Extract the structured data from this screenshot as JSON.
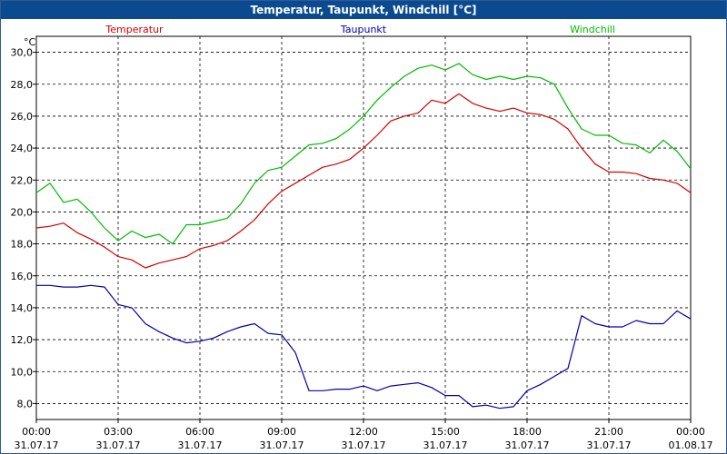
{
  "window": {
    "title": "Temperatur, Taupunkt, Windchill [°C]"
  },
  "chart_data": {
    "type": "line",
    "title": "Temperatur, Taupunkt, Windchill [°C]",
    "ylabel": "°C",
    "ylim": [
      7,
      31
    ],
    "y_ticks": [
      "8,0",
      "10,0",
      "12,0",
      "14,0",
      "16,0",
      "18,0",
      "20,0",
      "22,0",
      "24,0",
      "26,0",
      "28,0",
      "30,0"
    ],
    "x_ticks": [
      {
        "time": "00:00",
        "date": "31.07.17"
      },
      {
        "time": "03:00",
        "date": "31.07.17"
      },
      {
        "time": "06:00",
        "date": "31.07.17"
      },
      {
        "time": "09:00",
        "date": "31.07.17"
      },
      {
        "time": "12:00",
        "date": "31.07.17"
      },
      {
        "time": "15:00",
        "date": "31.07.17"
      },
      {
        "time": "18:00",
        "date": "31.07.17"
      },
      {
        "time": "21:00",
        "date": "31.07.17"
      },
      {
        "time": "00:00",
        "date": "01.08.17"
      }
    ],
    "grid": true,
    "legend_position": "top",
    "series": [
      {
        "name": "Temperatur",
        "color": "#d40000",
        "x": [
          0,
          0.5,
          1,
          1.5,
          2,
          2.5,
          3,
          3.5,
          4,
          4.5,
          5,
          5.5,
          6,
          6.5,
          7,
          7.5,
          8,
          8.5,
          9,
          9.5,
          10,
          10.5,
          11,
          11.5,
          12,
          12.5,
          13,
          13.5,
          14,
          14.5,
          15,
          15.5,
          16,
          16.5,
          17,
          17.5,
          18,
          18.5,
          19,
          19.5,
          20,
          20.5,
          21,
          21.5,
          22,
          22.5,
          23,
          23.5,
          24
        ],
        "y": [
          19.0,
          19.1,
          19.3,
          18.7,
          18.3,
          17.8,
          17.2,
          17.0,
          16.5,
          16.8,
          17.0,
          17.2,
          17.7,
          17.9,
          18.2,
          18.8,
          19.5,
          20.5,
          21.3,
          21.8,
          22.3,
          22.8,
          23.0,
          23.3,
          24.0,
          24.8,
          25.7,
          26.0,
          26.2,
          27.0,
          26.8,
          27.4,
          26.8,
          26.5,
          26.3,
          26.5,
          26.2,
          26.1,
          25.8,
          25.2,
          24.0,
          23.0,
          22.5,
          22.5,
          22.4,
          22.1,
          22.0,
          21.8,
          21.2
        ]
      },
      {
        "name": "Taupunkt",
        "color": "#0000aa",
        "x": [
          0,
          0.5,
          1,
          1.5,
          2,
          2.5,
          3,
          3.5,
          4,
          4.5,
          5,
          5.5,
          6,
          6.5,
          7,
          7.5,
          8,
          8.5,
          9,
          9.5,
          10,
          10.5,
          11,
          11.5,
          12,
          12.5,
          13,
          13.5,
          14,
          14.5,
          15,
          15.5,
          16,
          16.5,
          17,
          17.5,
          18,
          18.5,
          19,
          19.5,
          20,
          20.5,
          21,
          21.5,
          22,
          22.5,
          23,
          23.5,
          24
        ],
        "y": [
          15.4,
          15.4,
          15.3,
          15.3,
          15.4,
          15.3,
          14.2,
          14.0,
          13.0,
          12.5,
          12.1,
          11.8,
          11.9,
          12.1,
          12.5,
          12.8,
          13.0,
          12.4,
          12.3,
          11.2,
          8.8,
          8.8,
          8.9,
          8.9,
          9.1,
          8.8,
          9.1,
          9.2,
          9.3,
          9.0,
          8.5,
          8.5,
          7.8,
          7.9,
          7.7,
          7.8,
          8.8,
          9.2,
          9.7,
          10.2,
          13.5,
          13.0,
          12.8,
          12.8,
          13.2,
          13.0,
          13.0,
          13.8,
          13.3
        ]
      },
      {
        "name": "Windchill",
        "color": "#00bb00",
        "x": [
          0,
          0.5,
          1,
          1.5,
          2,
          2.5,
          3,
          3.5,
          4,
          4.5,
          5,
          5.5,
          6,
          6.5,
          7,
          7.5,
          8,
          8.5,
          9,
          9.5,
          10,
          10.5,
          11,
          11.5,
          12,
          12.5,
          13,
          13.5,
          14,
          14.5,
          15,
          15.5,
          16,
          16.5,
          17,
          17.5,
          18,
          18.5,
          19,
          19.5,
          20,
          20.5,
          21,
          21.5,
          22,
          22.5,
          23,
          23.5,
          24
        ],
        "y": [
          21.2,
          21.8,
          20.6,
          20.8,
          20.0,
          19.0,
          18.2,
          18.8,
          18.4,
          18.6,
          18.0,
          19.2,
          19.2,
          19.4,
          19.6,
          20.5,
          21.8,
          22.6,
          22.8,
          23.5,
          24.2,
          24.3,
          24.6,
          25.2,
          26.0,
          27.0,
          27.8,
          28.5,
          29.0,
          29.2,
          28.9,
          29.3,
          28.6,
          28.3,
          28.5,
          28.3,
          28.5,
          28.4,
          28.0,
          26.5,
          25.2,
          24.8,
          24.8,
          24.3,
          24.2,
          23.7,
          24.5,
          23.8,
          22.7
        ]
      }
    ]
  }
}
